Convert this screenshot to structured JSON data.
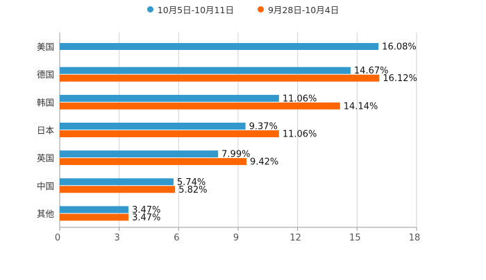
{
  "chart_data": {
    "type": "bar",
    "orientation": "horizontal",
    "title": "",
    "xlabel": "",
    "ylabel": "",
    "categories": [
      "美国",
      "德国",
      "韩国",
      "日本",
      "英国",
      "中国",
      "其他"
    ],
    "series": [
      {
        "name": "10月5日-10月11日",
        "color": "#3399cc",
        "values": [
          16.08,
          14.67,
          11.06,
          9.37,
          7.99,
          5.74,
          3.47
        ],
        "labels": [
          "16.08%",
          "14.67%",
          "11.06%",
          "9.37%",
          "7.99%",
          "5.74%",
          "3.47%"
        ]
      },
      {
        "name": "9月28日-10月4日",
        "color": "#ff6600",
        "values": [
          null,
          16.12,
          14.14,
          11.06,
          9.42,
          5.82,
          3.47
        ],
        "labels": [
          null,
          "16.12%",
          "14.14%",
          "11.06%",
          "9.42%",
          "5.82%",
          "3.47%"
        ]
      }
    ],
    "xlim": [
      0,
      18
    ],
    "xticks": [
      "0",
      "3",
      "6",
      "9",
      "12",
      "15",
      "18"
    ],
    "xtick_values": [
      0,
      3,
      6,
      9,
      12,
      15,
      18
    ],
    "grid": true,
    "legend_position": "top-center"
  }
}
